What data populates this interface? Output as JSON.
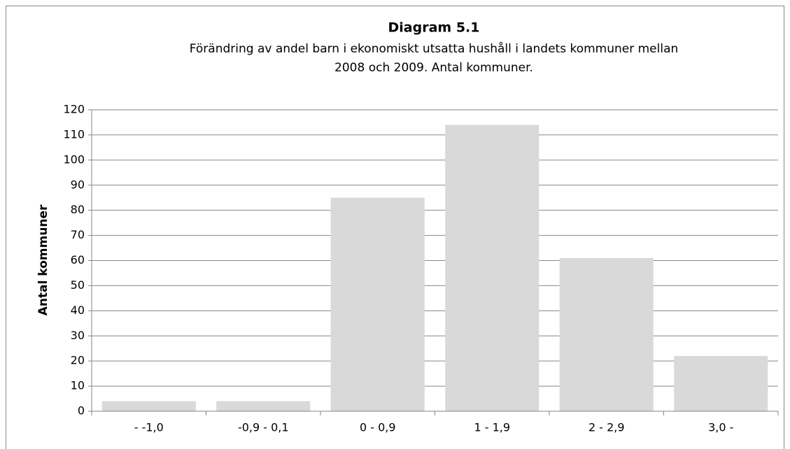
{
  "chart_data": {
    "type": "bar",
    "title": "Diagram 5.1",
    "subtitle": [
      "Förändring av andel barn i ekonomiskt utsatta hushåll i landets kommuner mellan",
      "2008 och 2009. Antal kommuner."
    ],
    "y_label": "Antal kommuner",
    "categories": [
      "- -1,0",
      "-0,9 - 0,1",
      "0 - 0,9",
      "1 - 1,9",
      "2 - 2,9",
      "3,0 -"
    ],
    "values": [
      4,
      4,
      85,
      114,
      61,
      22
    ],
    "color": "#d9d9d9",
    "ylim": [
      0,
      120
    ],
    "yticks": [
      0,
      10,
      20,
      30,
      40,
      50,
      60,
      70,
      80,
      90,
      100,
      110,
      120
    ],
    "grid": true
  }
}
